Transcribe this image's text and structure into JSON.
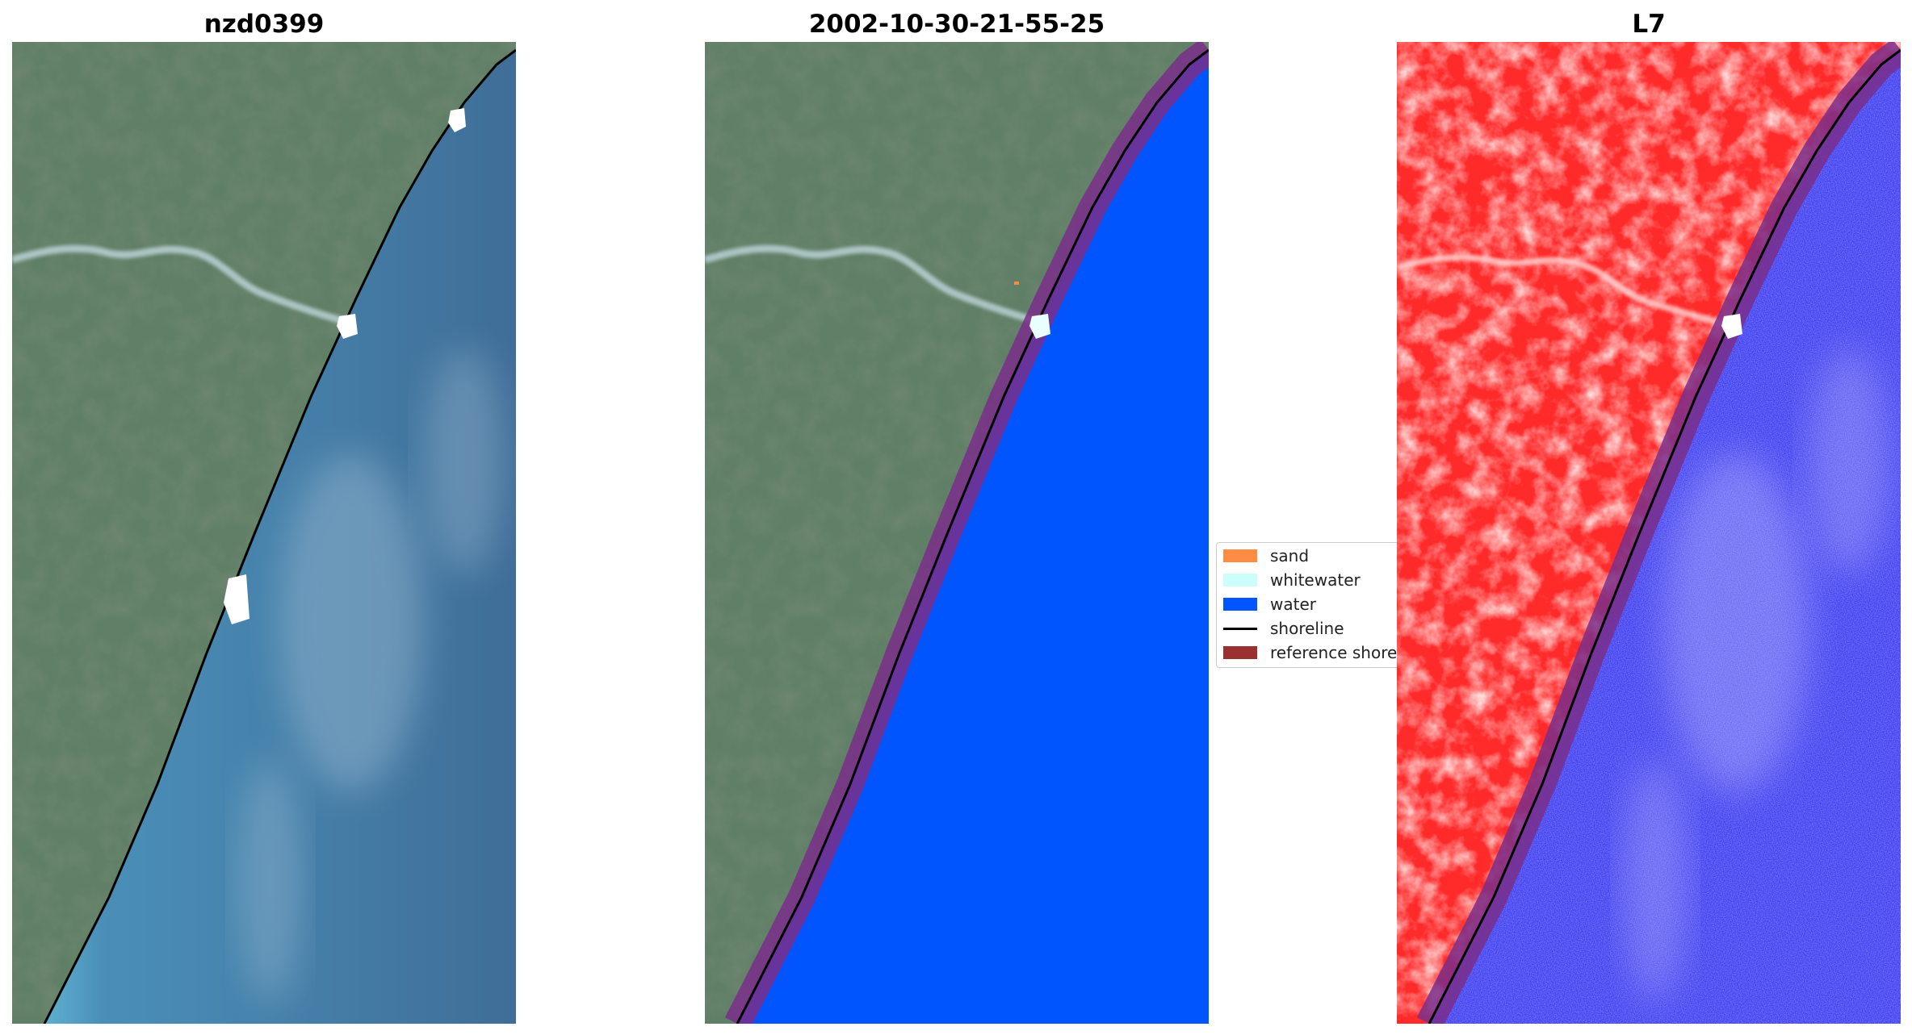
{
  "panels": [
    {
      "title": "nzd0399",
      "view": "rgb"
    },
    {
      "title": "2002-10-30-21-55-25",
      "view": "classified"
    },
    {
      "title": "L7",
      "view": "mndwi"
    }
  ],
  "legend": {
    "items": [
      {
        "label": "sand",
        "kind": "patch",
        "color": "#ff8c42"
      },
      {
        "label": "whitewater",
        "kind": "patch",
        "color": "#ccfffb"
      },
      {
        "label": "water",
        "kind": "patch",
        "color": "#0055ff"
      },
      {
        "label": "shoreline",
        "kind": "line",
        "color": "#000000"
      },
      {
        "label": "reference shoreline",
        "kind": "patch",
        "color": "#9b3030"
      }
    ]
  },
  "colors": {
    "land": "#5f7f66",
    "sea_rgb": "#4a86b0",
    "water_class": "#0055ff",
    "buffer": "#7a2e8a",
    "land_index": "#ff2a2a",
    "water_index": "#3a3af0",
    "cloud": "#ffffff"
  }
}
